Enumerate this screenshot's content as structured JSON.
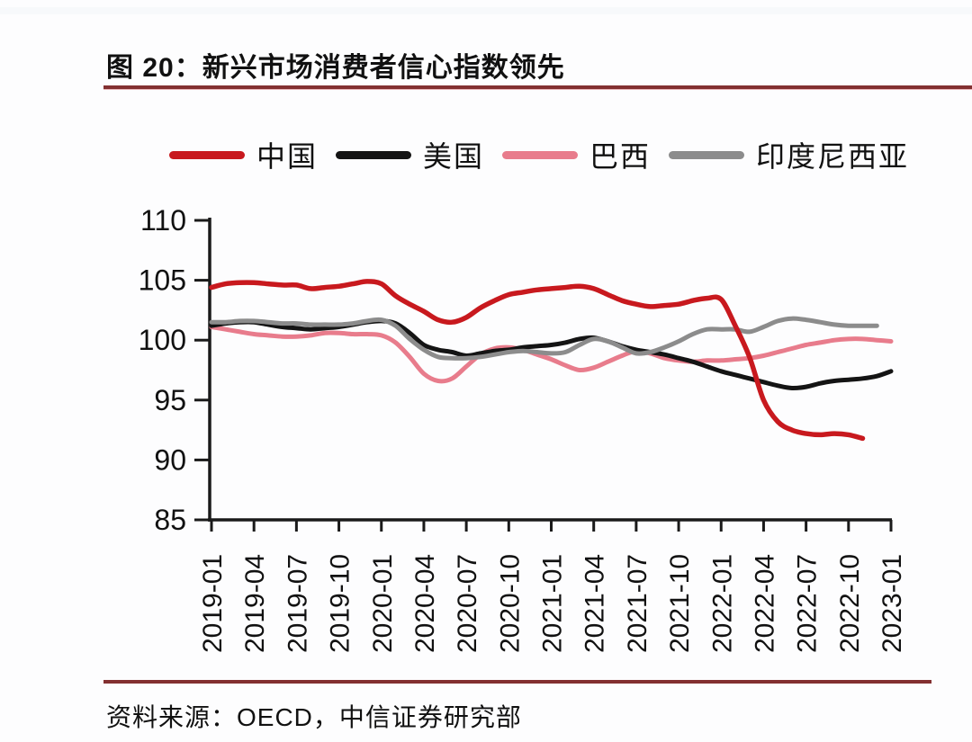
{
  "figure": {
    "title": "图 20：新兴市场消费者信心指数领先",
    "source": "资料来源：OECD，中信证券研究部"
  },
  "colors": {
    "rule_accent": "#833031",
    "axis": "#1a1a1a",
    "text": "#111111",
    "background": "#fdfdfe"
  },
  "chart_data": {
    "type": "line",
    "title": "新兴市场消费者信心指数领先",
    "xlabel": "",
    "ylabel": "",
    "ylim": [
      85,
      110
    ],
    "yticks": [
      85,
      90,
      95,
      100,
      105,
      110
    ],
    "grid": false,
    "legend_position": "top",
    "x_tick_labels": [
      "2019-01",
      "2019-04",
      "2019-07",
      "2019-10",
      "2020-01",
      "2020-04",
      "2020-07",
      "2020-10",
      "2021-01",
      "2021-04",
      "2021-07",
      "2021-10",
      "2022-01",
      "2022-04",
      "2022-07",
      "2022-10",
      "2023-01"
    ],
    "x": [
      "2019-01",
      "2019-02",
      "2019-03",
      "2019-04",
      "2019-05",
      "2019-06",
      "2019-07",
      "2019-08",
      "2019-09",
      "2019-10",
      "2019-11",
      "2019-12",
      "2020-01",
      "2020-02",
      "2020-03",
      "2020-04",
      "2020-05",
      "2020-06",
      "2020-07",
      "2020-08",
      "2020-09",
      "2020-10",
      "2020-11",
      "2020-12",
      "2021-01",
      "2021-02",
      "2021-03",
      "2021-04",
      "2021-05",
      "2021-06",
      "2021-07",
      "2021-08",
      "2021-09",
      "2021-10",
      "2021-11",
      "2021-12",
      "2022-01",
      "2022-02",
      "2022-03",
      "2022-04",
      "2022-05",
      "2022-06",
      "2022-07",
      "2022-08",
      "2022-09",
      "2022-10",
      "2022-11",
      "2022-12",
      "2023-01"
    ],
    "series": [
      {
        "key": "china",
        "name": "中国",
        "color": "#C8191E",
        "values": [
          104.4,
          104.7,
          104.8,
          104.8,
          104.7,
          104.6,
          104.6,
          104.3,
          104.4,
          104.5,
          104.7,
          104.9,
          104.7,
          103.7,
          103.0,
          102.4,
          101.7,
          101.5,
          101.9,
          102.7,
          103.3,
          103.8,
          104.0,
          104.2,
          104.3,
          104.4,
          104.5,
          104.3,
          103.8,
          103.3,
          103.0,
          102.8,
          102.9,
          103.0,
          103.3,
          103.5,
          103.4,
          101.2,
          98.6,
          95.0,
          93.2,
          92.5,
          92.2,
          92.1,
          92.2,
          92.1,
          91.8,
          null,
          null
        ]
      },
      {
        "key": "usa",
        "name": "美国",
        "color": "#141414",
        "values": [
          101.2,
          101.4,
          101.5,
          101.5,
          101.3,
          101.1,
          101.0,
          100.9,
          101.0,
          101.1,
          101.3,
          101.5,
          101.6,
          101.4,
          100.6,
          99.6,
          99.2,
          99.0,
          98.7,
          98.9,
          99.1,
          99.2,
          99.4,
          99.5,
          99.6,
          99.8,
          100.1,
          100.2,
          99.9,
          99.5,
          99.2,
          99.0,
          98.8,
          98.5,
          98.2,
          97.8,
          97.4,
          97.1,
          96.8,
          96.5,
          96.2,
          96.0,
          96.1,
          96.4,
          96.6,
          96.7,
          96.8,
          97.0,
          97.4
        ]
      },
      {
        "key": "brazil",
        "name": "巴西",
        "color": "#E87C8C",
        "values": [
          101.1,
          100.9,
          100.7,
          100.5,
          100.4,
          100.3,
          100.3,
          100.4,
          100.6,
          100.6,
          100.5,
          100.5,
          100.4,
          99.8,
          98.6,
          97.2,
          96.6,
          96.8,
          97.8,
          98.8,
          99.3,
          99.4,
          99.2,
          98.8,
          98.4,
          97.9,
          97.5,
          97.7,
          98.2,
          98.7,
          99.1,
          98.9,
          98.5,
          98.3,
          98.2,
          98.3,
          98.3,
          98.4,
          98.5,
          98.7,
          99.0,
          99.3,
          99.6,
          99.8,
          100.0,
          100.1,
          100.1,
          100.0,
          99.9
        ]
      },
      {
        "key": "indonesia",
        "name": "印度尼西亚",
        "color": "#8C8C8C",
        "values": [
          101.5,
          101.5,
          101.6,
          101.6,
          101.5,
          101.4,
          101.4,
          101.3,
          101.3,
          101.3,
          101.4,
          101.6,
          101.7,
          101.2,
          100.1,
          99.2,
          98.6,
          98.5,
          98.5,
          98.6,
          98.8,
          99.0,
          99.1,
          99.0,
          98.9,
          99.0,
          99.6,
          100.1,
          99.9,
          99.4,
          98.9,
          99.0,
          99.4,
          99.9,
          100.5,
          100.9,
          100.9,
          100.9,
          100.7,
          101.1,
          101.6,
          101.8,
          101.7,
          101.5,
          101.3,
          101.2,
          101.2,
          101.2,
          null
        ]
      }
    ]
  }
}
